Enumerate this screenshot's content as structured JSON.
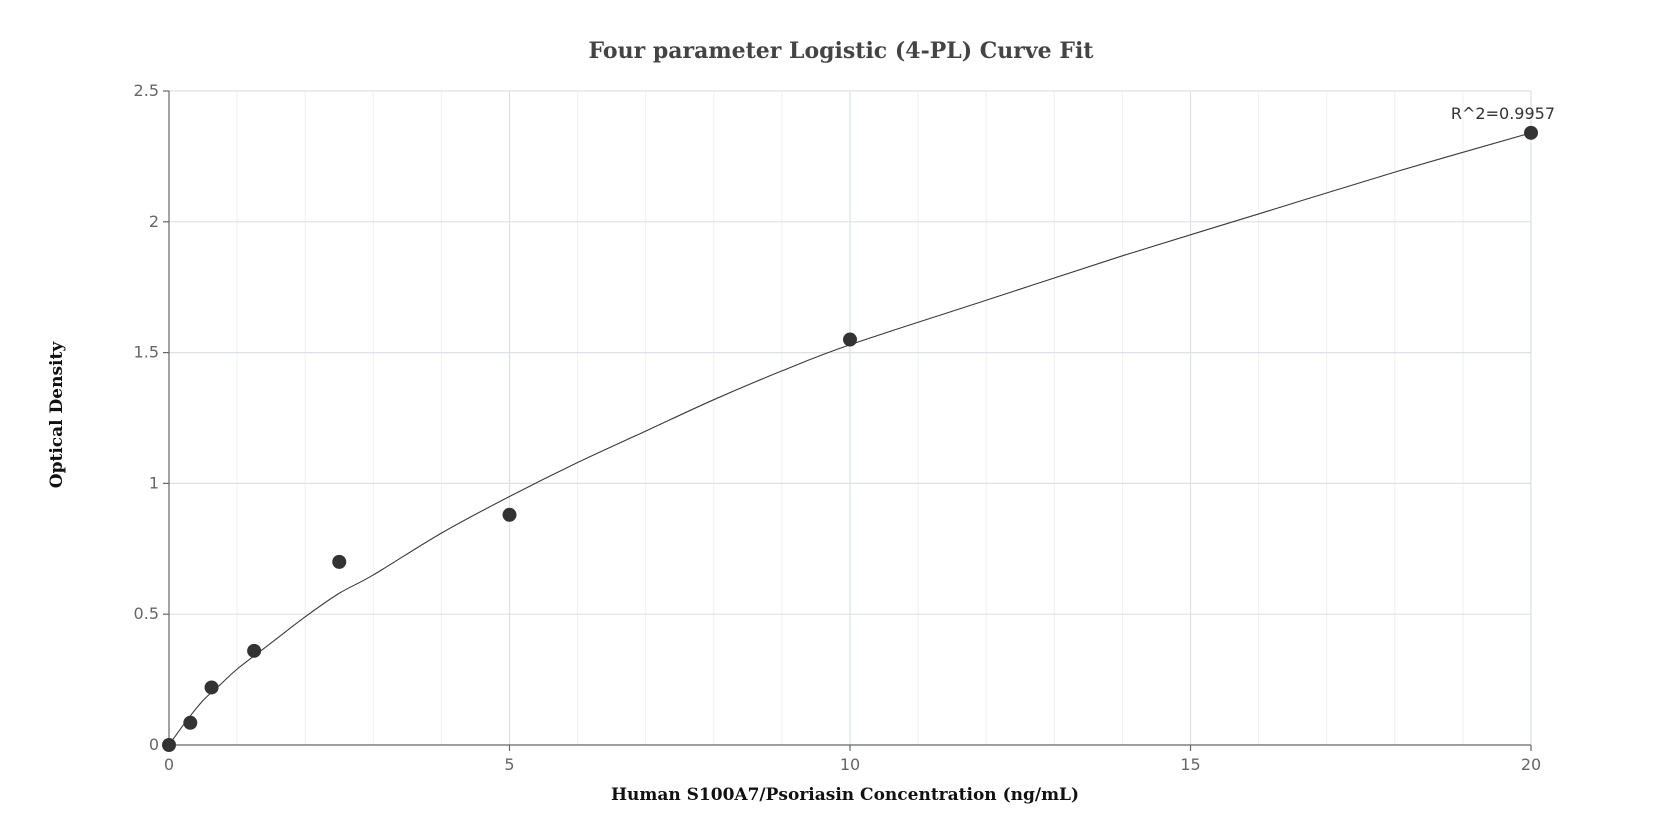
{
  "chart_data": {
    "type": "scatter",
    "title": "Four parameter Logistic (4-PL) Curve Fit",
    "xlabel": "Human S100A7/Psoriasin Concentration (ng/mL)",
    "ylabel": "Optical Density",
    "xlim": [
      0,
      20
    ],
    "ylim": [
      0,
      2.5
    ],
    "x_ticks": [
      "0",
      "5",
      "10",
      "15",
      "20"
    ],
    "y_ticks": [
      "0",
      "0.5",
      "1",
      "1.5",
      "2",
      "2.5"
    ],
    "x_tick_values": [
      0,
      5,
      10,
      15,
      20
    ],
    "y_tick_values": [
      0,
      0.5,
      1,
      1.5,
      2,
      2.5
    ],
    "grid": true,
    "series": [
      {
        "points": [
          {
            "x": 0,
            "y": 0.0
          },
          {
            "x": 0.313,
            "y": 0.085
          },
          {
            "x": 0.625,
            "y": 0.22
          },
          {
            "x": 1.25,
            "y": 0.36
          },
          {
            "x": 2.5,
            "y": 0.7
          },
          {
            "x": 5,
            "y": 0.88
          },
          {
            "x": 10,
            "y": 1.55
          },
          {
            "x": 20,
            "y": 2.34
          }
        ]
      }
    ],
    "fit_curve": [
      {
        "x": 0,
        "y": 0.0
      },
      {
        "x": 0.25,
        "y": 0.09
      },
      {
        "x": 0.5,
        "y": 0.17
      },
      {
        "x": 0.75,
        "y": 0.23
      },
      {
        "x": 1.0,
        "y": 0.29
      },
      {
        "x": 1.5,
        "y": 0.39
      },
      {
        "x": 2.0,
        "y": 0.49
      },
      {
        "x": 2.5,
        "y": 0.58
      },
      {
        "x": 3.0,
        "y": 0.65
      },
      {
        "x": 4.0,
        "y": 0.81
      },
      {
        "x": 5.0,
        "y": 0.95
      },
      {
        "x": 6.0,
        "y": 1.08
      },
      {
        "x": 7.0,
        "y": 1.2
      },
      {
        "x": 8.0,
        "y": 1.32
      },
      {
        "x": 9.0,
        "y": 1.43
      },
      {
        "x": 10.0,
        "y": 1.53
      },
      {
        "x": 12.0,
        "y": 1.7
      },
      {
        "x": 14.0,
        "y": 1.87
      },
      {
        "x": 16.0,
        "y": 2.03
      },
      {
        "x": 18.0,
        "y": 2.19
      },
      {
        "x": 20.0,
        "y": 2.34
      }
    ],
    "annotation": "R^2=0.9957"
  }
}
